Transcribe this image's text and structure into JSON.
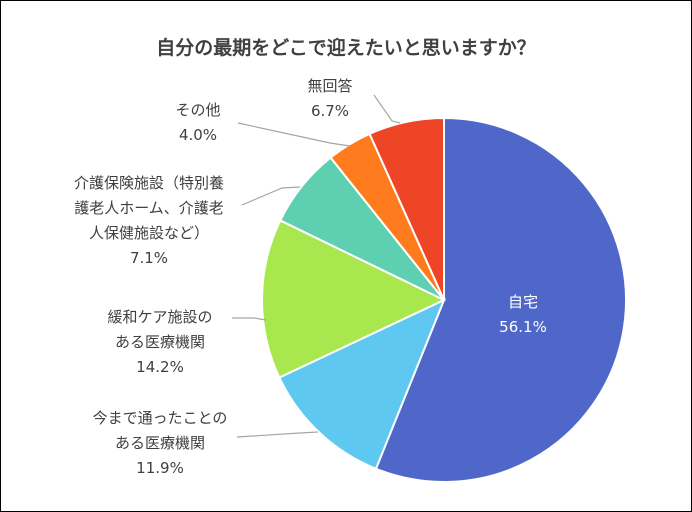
{
  "chart_data": {
    "type": "pie",
    "title": "自分の最期をどこで迎えたいと思いますか？",
    "slices": [
      {
        "label_lines": [
          "自宅"
        ],
        "value": 56.1,
        "display": "56.1%",
        "color": "#4f67c8"
      },
      {
        "label_lines": [
          "今まで通ったことの",
          "ある医療機関"
        ],
        "value": 11.9,
        "display": "11.9%",
        "color": "#5ec8f0"
      },
      {
        "label_lines": [
          "緩和ケア施設の",
          "ある医療機関"
        ],
        "value": 14.2,
        "display": "14.2%",
        "color": "#a8e84e"
      },
      {
        "label_lines": [
          "介護保険施設（特別養",
          "護老人ホーム、介護老",
          "人保健施設など）"
        ],
        "value": 7.1,
        "display": "7.1%",
        "color": "#5ecfb0"
      },
      {
        "label_lines": [
          "その他"
        ],
        "value": 4.0,
        "display": "4.0%",
        "color": "#ff7c1e"
      },
      {
        "label_lines": [
          "無回答"
        ],
        "value": 6.7,
        "display": "6.7%",
        "color": "#ef4527"
      }
    ],
    "start_angle": "12 o'clock",
    "direction": "clockwise",
    "legend": "none"
  }
}
